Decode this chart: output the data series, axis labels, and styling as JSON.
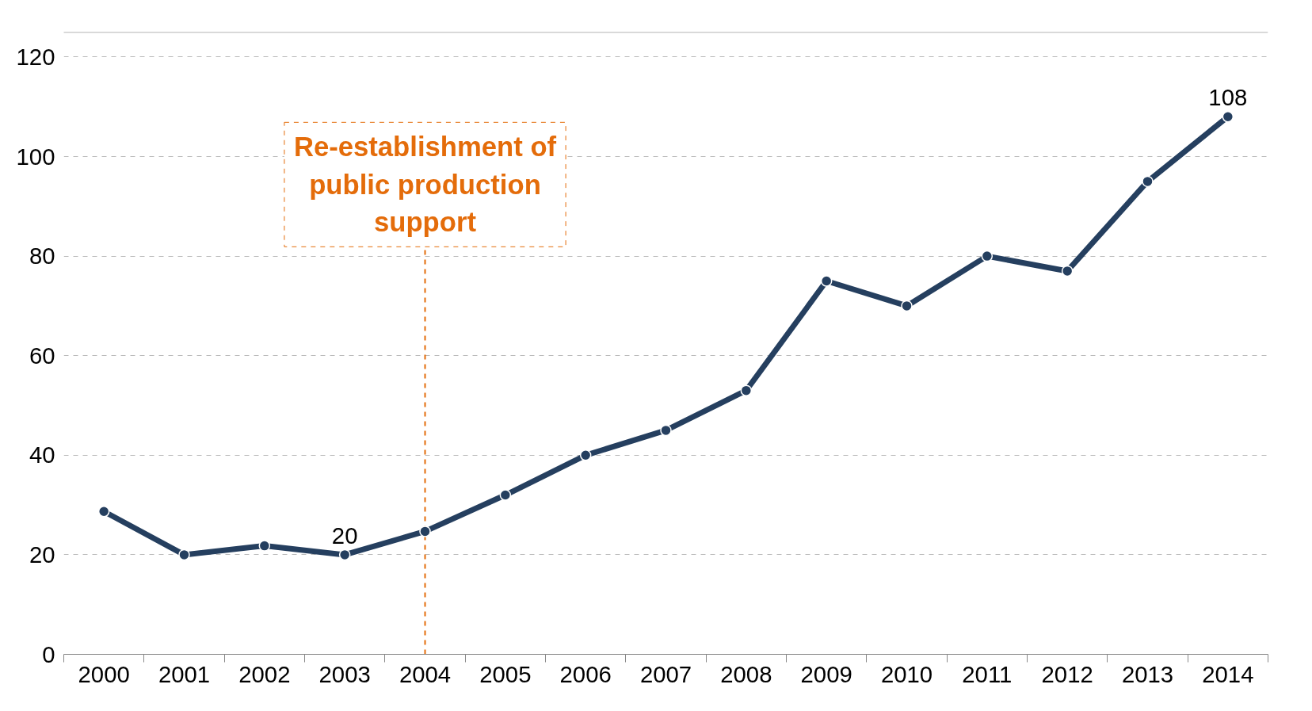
{
  "chart_data": {
    "type": "line",
    "categories": [
      "2000",
      "2001",
      "2002",
      "2003",
      "2004",
      "2005",
      "2006",
      "2007",
      "2008",
      "2009",
      "2010",
      "2011",
      "2012",
      "2013",
      "2014"
    ],
    "series": [
      {
        "color": "#253f5f",
        "values": [
          28.7,
          20,
          21.8,
          20,
          24.7,
          32,
          40,
          45,
          53,
          75,
          70,
          80,
          77,
          95,
          108
        ],
        "value_labels": [
          null,
          null,
          null,
          "20",
          null,
          null,
          null,
          null,
          null,
          null,
          null,
          null,
          null,
          null,
          "108"
        ]
      }
    ],
    "ylim": [
      0,
      125
    ],
    "yticks": [
      0,
      20,
      40,
      60,
      80,
      100,
      120
    ],
    "grid": "y",
    "marker": "circle",
    "line_style": "solid",
    "ref_lines": [
      {
        "axis": "x",
        "value": "2004",
        "label": "Re-establishment of public production support",
        "color": "#e46c0a",
        "line_style": "dashed"
      }
    ]
  }
}
